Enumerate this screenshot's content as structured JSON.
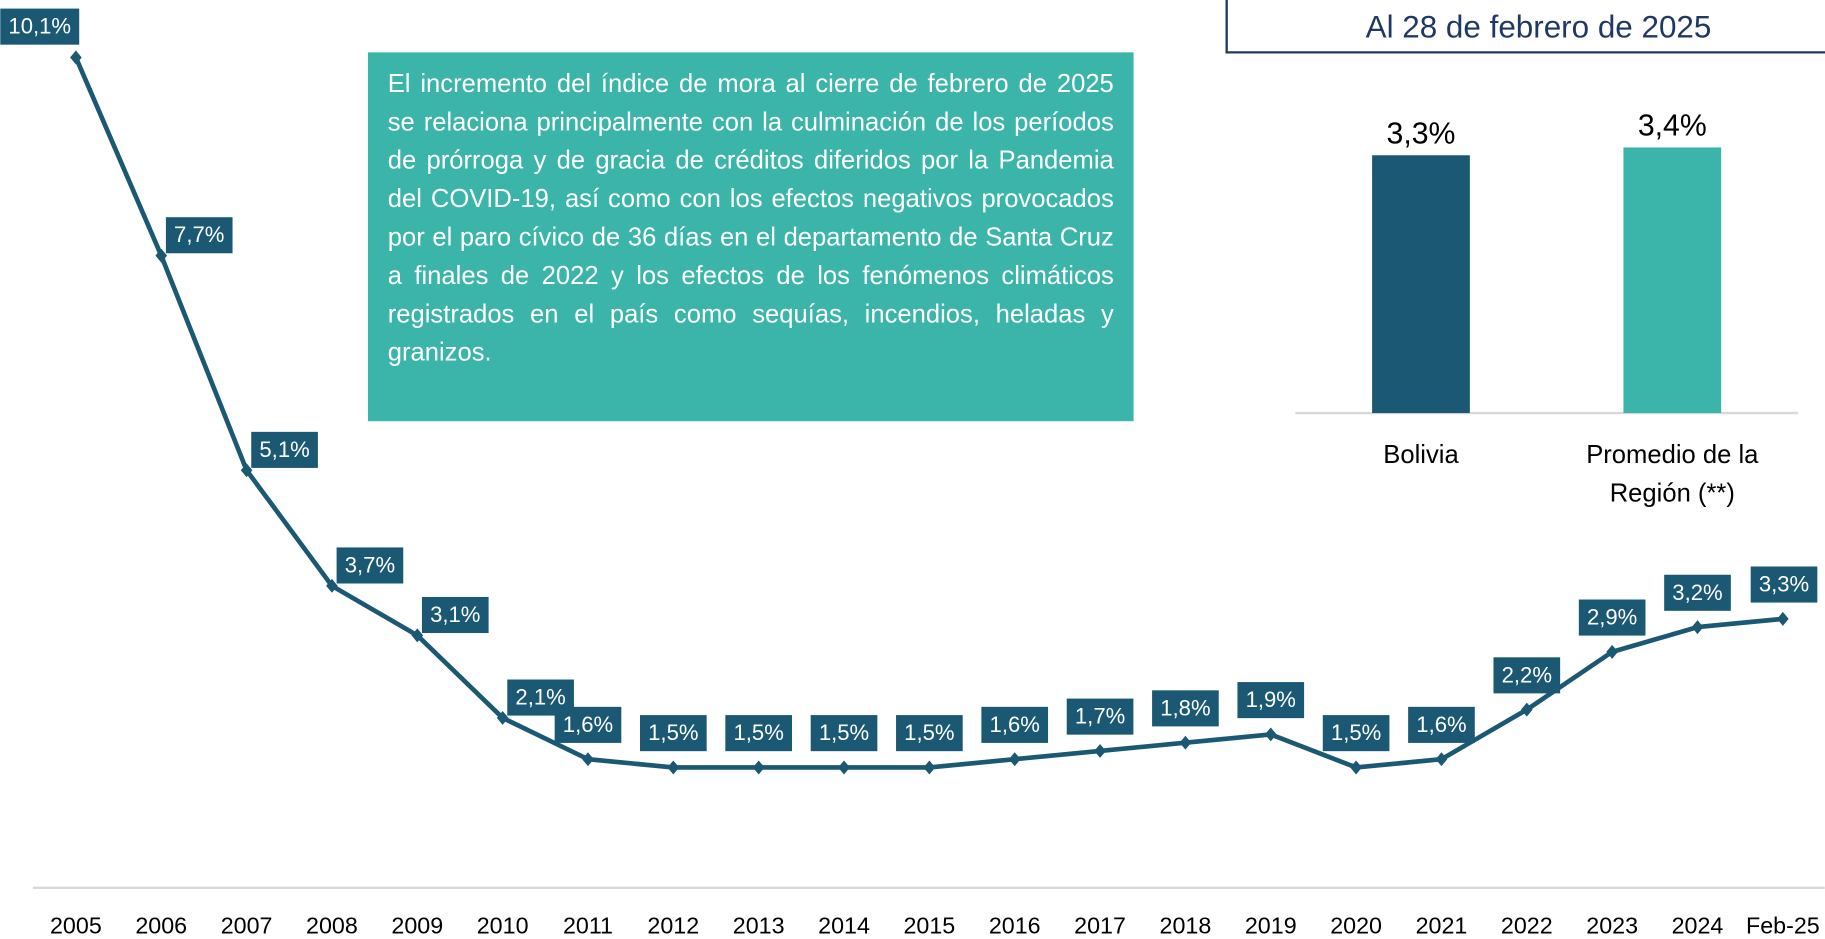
{
  "chart_data": [
    {
      "type": "line",
      "annotation": "El incremento del índice de mora al cierre de febrero de 2025 se relaciona principalmente con la culminación de los períodos de prórroga y de gracia de créditos diferidos por la Pandemia del COVID-19, así como con los efectos negativos provocados por el paro cívico de 36 días en el departamento de Santa Cruz a finales de 2022 y los efectos de los fenómenos climáticos registrados en el país como sequías, incendios, heladas y granizos.",
      "categories": [
        "2005",
        "2006",
        "2007",
        "2008",
        "2009",
        "2010",
        "2011",
        "2012",
        "2013",
        "2014",
        "2015",
        "2016",
        "2017",
        "2018",
        "2019",
        "2020",
        "2021",
        "2022",
        "2023",
        "2024",
        "Feb-25"
      ],
      "values": [
        10.1,
        7.7,
        5.1,
        3.7,
        3.1,
        2.1,
        1.6,
        1.5,
        1.5,
        1.5,
        1.5,
        1.6,
        1.7,
        1.8,
        1.9,
        1.5,
        1.6,
        2.2,
        2.9,
        3.2,
        3.3
      ],
      "value_labels": [
        "10,1%",
        "7,7%",
        "5,1%",
        "3,7%",
        "3,1%",
        "2,1%",
        "1,6%",
        "1,5%",
        "1,5%",
        "1,5%",
        "1,5%",
        "1,6%",
        "1,7%",
        "1,8%",
        "1,9%",
        "1,5%",
        "1,6%",
        "2,2%",
        "2,9%",
        "3,2%",
        "3,3%"
      ],
      "color": "#1a5874",
      "ylim": [
        0,
        10.5
      ]
    },
    {
      "type": "bar",
      "title": "Al 28 de febrero de 2025",
      "categories": [
        "Bolivia",
        "Promedio de la Región (**)"
      ],
      "values": [
        3.3,
        3.4
      ],
      "value_labels": [
        "3,3%",
        "3,4%"
      ],
      "colors": [
        "#1a5874",
        "#3bb5a9"
      ],
      "ylim": [
        0,
        3.5
      ]
    }
  ]
}
